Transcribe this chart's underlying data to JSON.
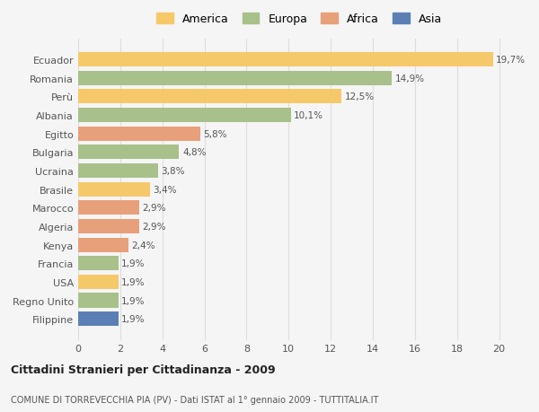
{
  "categories": [
    "Filippine",
    "Regno Unito",
    "USA",
    "Francia",
    "Kenya",
    "Algeria",
    "Marocco",
    "Brasile",
    "Ucraina",
    "Bulgaria",
    "Egitto",
    "Albania",
    "Perù",
    "Romania",
    "Ecuador"
  ],
  "values": [
    1.9,
    1.9,
    1.9,
    1.9,
    2.4,
    2.9,
    2.9,
    3.4,
    3.8,
    4.8,
    5.8,
    10.1,
    12.5,
    14.9,
    19.7
  ],
  "labels": [
    "1,9%",
    "1,9%",
    "1,9%",
    "1,9%",
    "2,4%",
    "2,9%",
    "2,9%",
    "3,4%",
    "3,8%",
    "4,8%",
    "5,8%",
    "10,1%",
    "12,5%",
    "14,9%",
    "19,7%"
  ],
  "colors": [
    "#5b7fb5",
    "#a8c08a",
    "#f5c96a",
    "#a8c08a",
    "#e8a07a",
    "#e8a07a",
    "#e8a07a",
    "#f5c96a",
    "#a8c08a",
    "#a8c08a",
    "#e8a07a",
    "#a8c08a",
    "#f5c96a",
    "#a8c08a",
    "#f5c96a"
  ],
  "legend_labels": [
    "America",
    "Europa",
    "Africa",
    "Asia"
  ],
  "legend_colors": [
    "#f5c96a",
    "#a8c08a",
    "#e8a07a",
    "#5b7fb5"
  ],
  "title": "Cittadini Stranieri per Cittadinanza - 2009",
  "subtitle": "COMUNE DI TORREVECCHIA PIA (PV) - Dati ISTAT al 1° gennaio 2009 - TUTTITALIA.IT",
  "xlim": [
    0,
    21
  ],
  "xticks": [
    0,
    2,
    4,
    6,
    8,
    10,
    12,
    14,
    16,
    18,
    20
  ],
  "background_color": "#f5f5f5",
  "grid_color": "#dddddd",
  "bar_height": 0.78
}
